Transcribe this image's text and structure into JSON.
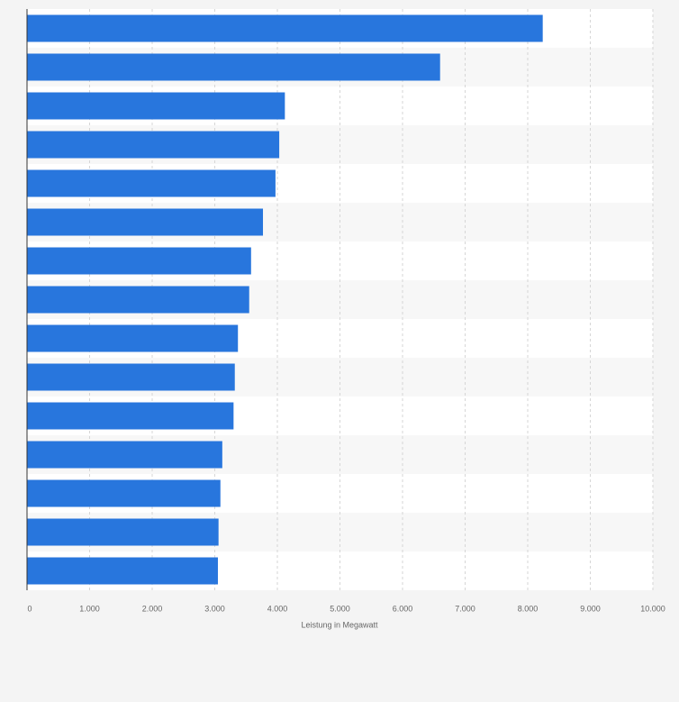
{
  "chart_data": {
    "type": "bar",
    "orientation": "horizontal",
    "categories": [
      null,
      null,
      null,
      null,
      null,
      null,
      null,
      null,
      null,
      null,
      null,
      null,
      null,
      null,
      null
    ],
    "values": [
      8240,
      6600,
      4120,
      4030,
      3970,
      3770,
      3580,
      3550,
      3370,
      3320,
      3300,
      3120,
      3090,
      3060,
      3050
    ],
    "color": "#2876dd",
    "xlabel": "Leistung in Megawatt",
    "xlim": [
      0,
      10000
    ],
    "xticks": [
      0,
      {
        "value": 1000,
        "label": "1.000"
      },
      {
        "value": 2000,
        "label": "2.000"
      },
      {
        "value": 3000,
        "label": "3.000"
      },
      {
        "value": 4000,
        "label": "4.000"
      },
      {
        "value": 5000,
        "label": "5.000"
      },
      {
        "value": 6000,
        "label": "6.000"
      },
      {
        "value": 7000,
        "label": "7.000"
      },
      {
        "value": 8000,
        "label": "8.000"
      },
      {
        "value": 9000,
        "label": "9.000"
      },
      {
        "value": 10000,
        "label": "10.000"
      }
    ],
    "grid": true
  }
}
